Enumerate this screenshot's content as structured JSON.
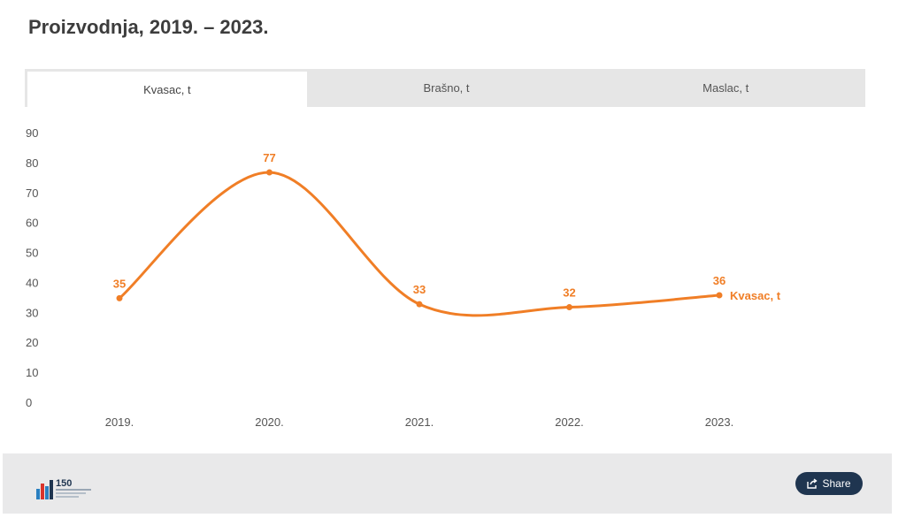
{
  "title": "Proizvodnja, 2019. – 2023.",
  "tabs": [
    {
      "label": "Kvasac, t",
      "active": true
    },
    {
      "label": "Brašno, t",
      "active": false
    },
    {
      "label": "Maslac, t",
      "active": false
    }
  ],
  "chart_data": {
    "type": "line",
    "categories": [
      "2019.",
      "2020.",
      "2021.",
      "2022.",
      "2023."
    ],
    "series": [
      {
        "name": "Kvasac, t",
        "values": [
          35,
          77,
          33,
          32,
          36
        ],
        "color": "#f07e26"
      }
    ],
    "ylim": [
      0,
      90
    ],
    "yticks": [
      0,
      10,
      20,
      30,
      40,
      50,
      60,
      70,
      80,
      90
    ],
    "xlabel": "",
    "ylabel": "",
    "grid": false,
    "curve": "smooth"
  },
  "footer": {
    "logo_text": "150",
    "logo_icon": "bar-logo-icon",
    "share_label": "Share",
    "share_icon": "share-icon",
    "share_color": "#1f3550"
  }
}
